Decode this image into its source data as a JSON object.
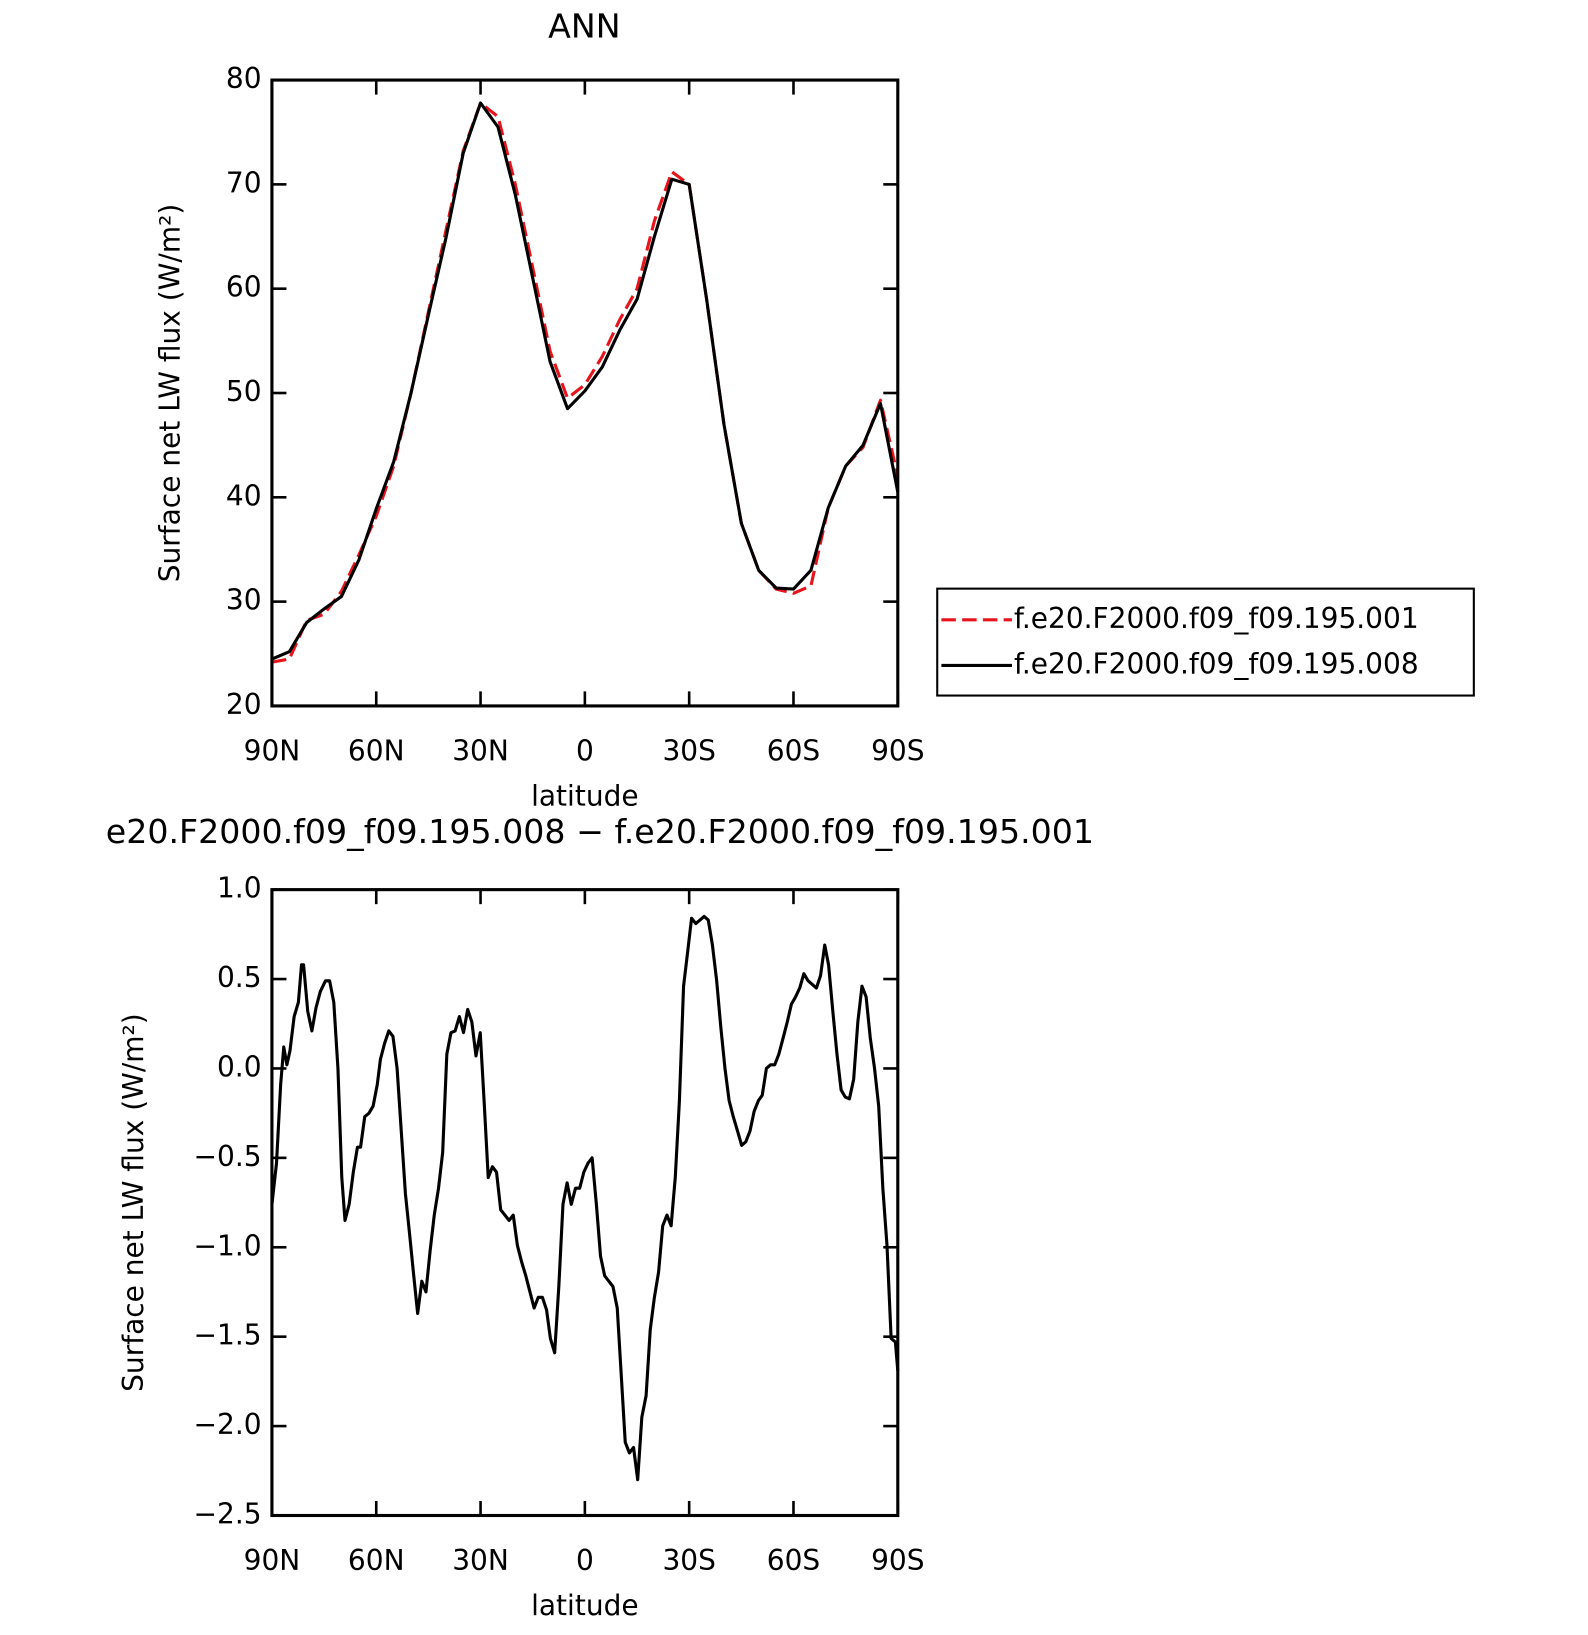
{
  "chart_data": [
    {
      "type": "line",
      "title": "ANN",
      "x_label": "latitude",
      "y_label": "Surface net LW flux (W/m²)",
      "xlim": [
        90,
        -90
      ],
      "xticks": [
        {
          "value": 90,
          "label": "90N"
        },
        {
          "value": 60,
          "label": "60N"
        },
        {
          "value": 30,
          "label": "30N"
        },
        0,
        {
          "value": -30,
          "label": "30S"
        },
        {
          "value": -60,
          "label": "60S"
        },
        {
          "value": -90,
          "label": "90S"
        }
      ],
      "ylim": [
        20,
        80
      ],
      "yticks": [
        20,
        30,
        40,
        50,
        60,
        70,
        80
      ],
      "legend": "right",
      "x": [
        90,
        85,
        80,
        75,
        70,
        65,
        60,
        55,
        50,
        45,
        40,
        35,
        30,
        25,
        20,
        15,
        10,
        5,
        0,
        -5,
        -10,
        -15,
        -20,
        -25,
        -30,
        -35,
        -40,
        -45,
        -50,
        -55,
        -60,
        -65,
        -70,
        -75,
        -80,
        -85,
        -90
      ],
      "series": [
        {
          "name": "f.e20.F2000.f09_f09.195.001",
          "color": "#e8141c",
          "dashed": true,
          "values": [
            24.2,
            24.5,
            28.2,
            28.8,
            31,
            34.5,
            38.2,
            43,
            50,
            57.8,
            65.5,
            73.2,
            77.8,
            76.5,
            70,
            62,
            54,
            49.5,
            50.8,
            53.5,
            57,
            60,
            66.5,
            71.2,
            70,
            59,
            47,
            37.5,
            33,
            31.2,
            30.8,
            31.5,
            39,
            43,
            44.8,
            49.3,
            42
          ]
        },
        {
          "name": "f.e20.F2000.f09_f09.195.008",
          "color": "#000000",
          "dashed": false,
          "values": [
            24.5,
            25.2,
            28,
            29.3,
            30.5,
            34,
            38.9,
            43.4,
            50,
            57.5,
            64.8,
            73,
            77.8,
            75.5,
            69,
            61,
            53,
            48.5,
            50.2,
            52.5,
            56,
            59,
            65,
            70.5,
            70,
            59,
            47,
            37.5,
            33,
            31.3,
            31.2,
            33,
            39,
            43,
            45,
            49,
            40.5
          ]
        }
      ]
    },
    {
      "type": "line",
      "title": "e20.F2000.f09_f09.195.008 − f.e20.F2000.f09_f09.195.001",
      "x_label": "latitude",
      "y_label": "Surface net LW flux (W/m²)",
      "xlim": [
        90,
        -90
      ],
      "xticks": [
        {
          "value": 90,
          "label": "90N"
        },
        {
          "value": 60,
          "label": "60N"
        },
        {
          "value": 30,
          "label": "30N"
        },
        0,
        {
          "value": -30,
          "label": "30S"
        },
        {
          "value": -60,
          "label": "60S"
        },
        {
          "value": -90,
          "label": "90S"
        }
      ],
      "ylim": [
        -2.5,
        1.0
      ],
      "yticks": [
        {
          "value": -2.5,
          "label": "−2.5"
        },
        {
          "value": -2.0,
          "label": "−2.0"
        },
        {
          "value": -1.5,
          "label": "−1.5"
        },
        {
          "value": -1.0,
          "label": "−1.0"
        },
        {
          "value": -0.5,
          "label": "−0.5"
        },
        {
          "value": 0,
          "label": "0.0"
        },
        {
          "value": 0.5,
          "label": "0.5"
        },
        {
          "value": 1.0,
          "label": "1.0"
        }
      ],
      "color": "#000000",
      "x": [
        90,
        88.7,
        87.5,
        86.6,
        85.7,
        84.8,
        83.6,
        82.4,
        81.5,
        80.9,
        79.7,
        78.5,
        77.3,
        76.1,
        74.6,
        73.4,
        72.2,
        71.0,
        69.9,
        69.0,
        67.8,
        66.6,
        65.4,
        64.5,
        63.3,
        62.1,
        60.9,
        59.7,
        58.8,
        57.6,
        56.4,
        55.2,
        54.0,
        52.8,
        51.6,
        50.4,
        49.3,
        48.1,
        46.9,
        45.7,
        44.5,
        43.3,
        42.1,
        40.9,
        39.7,
        38.5,
        37.3,
        36.1,
        34.9,
        33.7,
        32.5,
        31.3,
        30.1,
        29.0,
        27.8,
        26.6,
        25.4,
        24.2,
        23.0,
        21.8,
        20.6,
        19.4,
        18.2,
        17.0,
        15.8,
        14.6,
        13.4,
        12.2,
        11.0,
        9.9,
        8.7,
        7.5,
        6.3,
        5.1,
        3.9,
        2.7,
        1.5,
        0.3,
        -0.9,
        -2.1,
        -3.3,
        -4.5,
        -5.7,
        -6.9,
        -8.1,
        -9.3,
        -10.4,
        -11.6,
        -12.8,
        -14.0,
        -15.2,
        -16.4,
        -17.6,
        -18.8,
        -20.0,
        -21.2,
        -22.4,
        -23.6,
        -24.8,
        -26.0,
        -27.2,
        -28.4,
        -29.6,
        -30.7,
        -31.9,
        -33.1,
        -34.3,
        -35.5,
        -36.7,
        -37.9,
        -39.1,
        -40.3,
        -41.5,
        -42.7,
        -43.9,
        -45.1,
        -46.3,
        -47.5,
        -48.7,
        -49.9,
        -51.0,
        -52.2,
        -53.4,
        -54.6,
        -55.8,
        -57.0,
        -58.2,
        -59.4,
        -60.6,
        -61.8,
        -63.0,
        -64.2,
        -65.4,
        -66.6,
        -67.8,
        -69.0,
        -70.1,
        -71.3,
        -72.5,
        -73.7,
        -74.9,
        -76.1,
        -77.3,
        -78.5,
        -79.7,
        -80.9,
        -82.1,
        -83.3,
        -84.5,
        -85.7,
        -86.9,
        -88.1,
        -89.3,
        -90
      ],
      "values": [
        -0.76,
        -0.53,
        -0.09,
        0.12,
        0.02,
        0.1,
        0.29,
        0.37,
        0.58,
        0.58,
        0.32,
        0.21,
        0.34,
        0.43,
        0.49,
        0.49,
        0.37,
        0.0,
        -0.61,
        -0.85,
        -0.76,
        -0.58,
        -0.44,
        -0.44,
        -0.27,
        -0.25,
        -0.21,
        -0.09,
        0.05,
        0.14,
        0.21,
        0.18,
        0.0,
        -0.35,
        -0.7,
        -0.93,
        -1.14,
        -1.37,
        -1.19,
        -1.25,
        -1.02,
        -0.82,
        -0.67,
        -0.47,
        0.08,
        0.2,
        0.21,
        0.29,
        0.2,
        0.33,
        0.26,
        0.07,
        0.2,
        -0.18,
        -0.61,
        -0.55,
        -0.58,
        -0.79,
        -0.82,
        -0.85,
        -0.82,
        -0.99,
        -1.08,
        -1.16,
        -1.25,
        -1.34,
        -1.28,
        -1.28,
        -1.35,
        -1.51,
        -1.59,
        -1.22,
        -0.76,
        -0.64,
        -0.76,
        -0.67,
        -0.67,
        -0.58,
        -0.53,
        -0.5,
        -0.76,
        -1.05,
        -1.16,
        -1.19,
        -1.22,
        -1.34,
        -1.69,
        -2.09,
        -2.15,
        -2.12,
        -2.3,
        -1.95,
        -1.83,
        -1.46,
        -1.28,
        -1.14,
        -0.88,
        -0.82,
        -0.88,
        -0.61,
        -0.18,
        0.46,
        0.66,
        0.84,
        0.81,
        0.83,
        0.85,
        0.83,
        0.69,
        0.49,
        0.23,
        0.0,
        -0.18,
        -0.27,
        -0.35,
        -0.43,
        -0.41,
        -0.35,
        -0.24,
        -0.18,
        -0.15,
        0.0,
        0.02,
        0.02,
        0.08,
        0.17,
        0.26,
        0.36,
        0.4,
        0.45,
        0.53,
        0.49,
        0.47,
        0.45,
        0.52,
        0.69,
        0.58,
        0.32,
        0.08,
        -0.12,
        -0.16,
        -0.17,
        -0.06,
        0.26,
        0.46,
        0.4,
        0.17,
        0.0,
        -0.21,
        -0.67,
        -0.99,
        -1.51,
        -1.53,
        -1.69
      ]
    }
  ]
}
